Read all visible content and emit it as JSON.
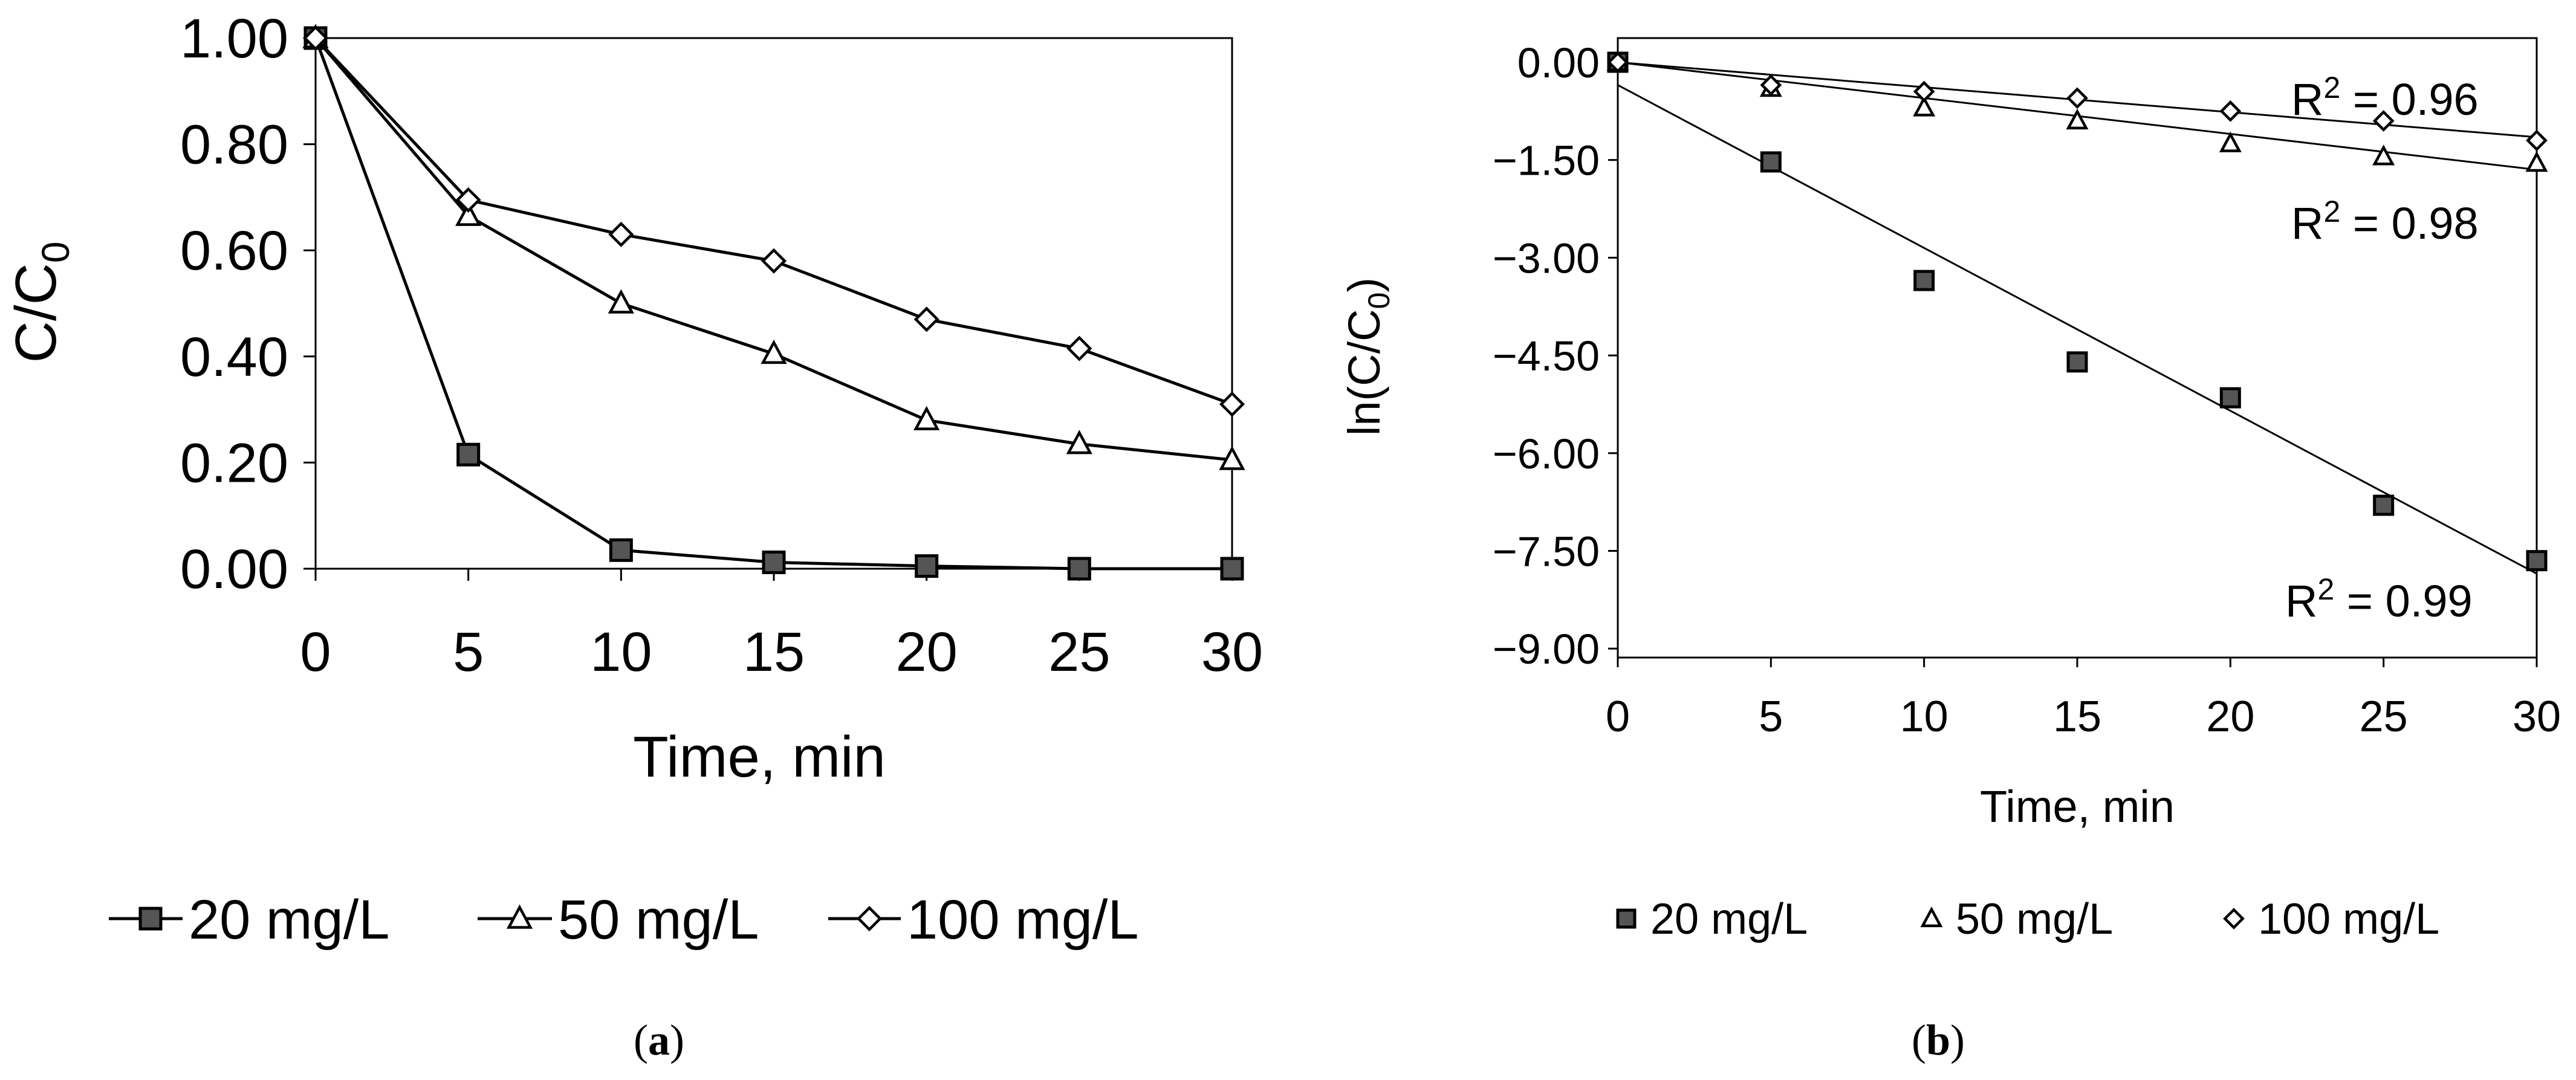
{
  "chart_data": [
    {
      "panel_label": "(a)",
      "panel_letter": "a",
      "type": "line",
      "xlabel": "Time, min",
      "ylabel": "C/C",
      "ylabel_sub": "0",
      "x": [
        0,
        5,
        10,
        15,
        20,
        25,
        30
      ],
      "xticks": [
        0,
        5,
        10,
        15,
        20,
        25,
        30
      ],
      "xtick_labels": [
        "0",
        "5",
        "10",
        "15",
        "20",
        "25",
        "30"
      ],
      "xlim": [
        0,
        30
      ],
      "ylim": [
        0,
        1
      ],
      "yticks": [
        0,
        0.2,
        0.4,
        0.6,
        0.8,
        1.0
      ],
      "ytick_labels": [
        "0.00",
        "0.20",
        "0.40",
        "0.60",
        "0.80",
        "1.00"
      ],
      "series": [
        {
          "name": "20 mg/L",
          "marker": "square",
          "values": [
            1.0,
            0.215,
            0.035,
            0.012,
            0.005,
            0.0,
            0.0
          ]
        },
        {
          "name": "50 mg/L",
          "marker": "triangle",
          "values": [
            1.0,
            0.665,
            0.5,
            0.405,
            0.28,
            0.235,
            0.205
          ]
        },
        {
          "name": "100 mg/L",
          "marker": "diamond",
          "values": [
            1.0,
            0.695,
            0.63,
            0.58,
            0.47,
            0.415,
            0.31
          ]
        }
      ],
      "legend_position": "bottom"
    },
    {
      "panel_label": "(b)",
      "panel_letter": "b",
      "type": "scatter",
      "xlabel": "Time, min",
      "ylabel": "ln(C/C",
      "ylabel_sub": "0",
      "ylabel_tail": ")",
      "x": [
        0,
        5,
        10,
        15,
        20,
        25,
        30
      ],
      "xticks": [
        0,
        5,
        10,
        15,
        20,
        25,
        30
      ],
      "xtick_labels": [
        "0",
        "5",
        "10",
        "15",
        "20",
        "25",
        "30"
      ],
      "xlim": [
        0,
        30
      ],
      "ylim": [
        -9,
        0.3
      ],
      "yticks": [
        0,
        -1.5,
        -3,
        -4.5,
        -6,
        -7.5,
        -9
      ],
      "ytick_labels": [
        "0.00",
        "−1.50",
        "−3.00",
        "−4.50",
        "−6.00",
        "−7.50",
        "−9.00"
      ],
      "series": [
        {
          "name": "20 mg/L",
          "marker": "square",
          "values": [
            0,
            -1.53,
            -3.35,
            -4.6,
            -5.15,
            -6.8,
            -7.65
          ],
          "trendline": {
            "y_start": -0.35,
            "y_end": -7.85
          },
          "r2_base": "R",
          "r2_exp": "2",
          "r2_text": " = 0.99"
        },
        {
          "name": "50 mg/L",
          "marker": "triangle",
          "values": [
            0,
            -0.4,
            -0.7,
            -0.9,
            -1.25,
            -1.45,
            -1.55
          ],
          "trendline": {
            "y_start": 0,
            "y_end": -1.65
          },
          "r2_base": "R",
          "r2_exp": "2",
          "r2_text": " = 0.98"
        },
        {
          "name": "100 mg/L",
          "marker": "diamond",
          "values": [
            0,
            -0.35,
            -0.45,
            -0.55,
            -0.75,
            -0.9,
            -1.2
          ],
          "trendline": {
            "y_start": 0,
            "y_end": -1.15
          },
          "r2_base": "R",
          "r2_exp": "2",
          "r2_text": " = 0.96"
        }
      ],
      "legend_position": "bottom"
    }
  ]
}
